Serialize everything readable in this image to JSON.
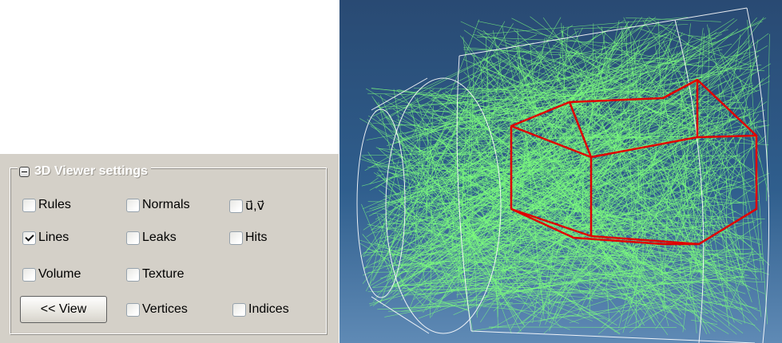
{
  "settings": {
    "group_title": "3D Viewer settings",
    "options": {
      "rules": {
        "label": "Rules",
        "checked": false
      },
      "normals": {
        "label": "Normals",
        "checked": false
      },
      "uv": {
        "label": "u⃗,v⃗",
        "checked": false
      },
      "lines": {
        "label": "Lines",
        "checked": true
      },
      "leaks": {
        "label": "Leaks",
        "checked": false
      },
      "hits": {
        "label": "Hits",
        "checked": false
      },
      "volume": {
        "label": "Volume",
        "checked": false
      },
      "texture": {
        "label": "Texture",
        "checked": false
      },
      "vertices": {
        "label": "Vertices",
        "checked": false
      },
      "indices": {
        "label": "Indices",
        "checked": false
      }
    },
    "view_button": "<< View"
  },
  "viewer": {
    "background_top": "#294a73",
    "background_bottom": "#5f8ab5",
    "ray_color": "#7dff7d",
    "geometry_color": "#ffffff",
    "selection_color": "#e00000",
    "icon": "3d-wireframe-viewport"
  }
}
